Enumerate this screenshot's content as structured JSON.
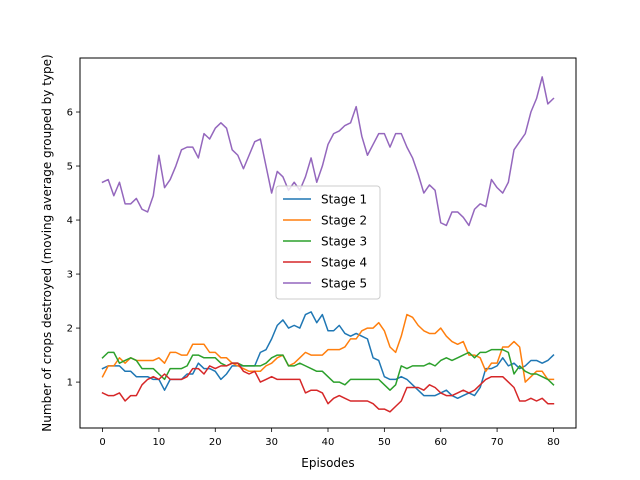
{
  "chart_data": {
    "type": "line",
    "title": "",
    "xlabel": "Episodes",
    "ylabel": "Number of crops destroyed (moving average grouped by type)",
    "xlim": [
      -4,
      84
    ],
    "ylim": [
      0.15,
      7.0
    ],
    "xticks": [
      0,
      10,
      20,
      30,
      40,
      50,
      60,
      70,
      80
    ],
    "yticks": [
      1,
      2,
      3,
      4,
      5,
      6
    ],
    "x_start": 0,
    "grid": false,
    "legend_position": "center",
    "series": [
      {
        "name": "Stage 1",
        "color": "#1f77b4",
        "values": [
          1.25,
          1.3,
          1.3,
          1.3,
          1.2,
          1.2,
          1.1,
          1.1,
          1.1,
          1.05,
          1.05,
          0.85,
          1.05,
          1.05,
          1.05,
          1.15,
          1.15,
          1.35,
          1.25,
          1.25,
          1.2,
          1.05,
          1.15,
          1.3,
          1.3,
          1.3,
          1.3,
          1.3,
          1.55,
          1.6,
          1.8,
          2.05,
          2.15,
          2.0,
          2.05,
          2.0,
          2.25,
          2.3,
          2.1,
          2.25,
          1.95,
          1.95,
          2.05,
          1.9,
          1.85,
          1.9,
          1.85,
          1.8,
          1.45,
          1.4,
          1.1,
          1.05,
          1.05,
          1.1,
          1.05,
          0.95,
          0.85,
          0.75,
          0.75,
          0.75,
          0.8,
          0.85,
          0.75,
          0.7,
          0.75,
          0.8,
          0.75,
          0.9,
          1.25,
          1.25,
          1.3,
          1.45,
          1.3,
          1.35,
          1.25,
          1.3,
          1.4,
          1.4,
          1.35,
          1.4,
          1.5
        ]
      },
      {
        "name": "Stage 2",
        "color": "#ff7f0e",
        "values": [
          1.1,
          1.3,
          1.3,
          1.45,
          1.35,
          1.45,
          1.4,
          1.4,
          1.4,
          1.4,
          1.45,
          1.35,
          1.55,
          1.55,
          1.5,
          1.5,
          1.7,
          1.7,
          1.7,
          1.55,
          1.55,
          1.45,
          1.45,
          1.35,
          1.3,
          1.25,
          1.2,
          1.2,
          1.2,
          1.3,
          1.35,
          1.45,
          1.5,
          1.3,
          1.35,
          1.45,
          1.55,
          1.5,
          1.5,
          1.5,
          1.6,
          1.6,
          1.6,
          1.65,
          1.8,
          1.8,
          1.95,
          2.0,
          2.0,
          2.1,
          1.95,
          1.65,
          1.55,
          1.85,
          2.25,
          2.2,
          2.05,
          1.95,
          1.9,
          1.9,
          2.0,
          1.85,
          1.75,
          1.7,
          1.75,
          1.5,
          1.5,
          1.45,
          1.2,
          1.35,
          1.35,
          1.65,
          1.65,
          1.75,
          1.65,
          1.0,
          1.1,
          1.2,
          1.2,
          1.05,
          1.05
        ]
      },
      {
        "name": "Stage 3",
        "color": "#2ca02c",
        "values": [
          1.45,
          1.55,
          1.55,
          1.35,
          1.4,
          1.45,
          1.4,
          1.25,
          1.25,
          1.25,
          1.15,
          1.05,
          1.25,
          1.25,
          1.25,
          1.3,
          1.5,
          1.5,
          1.45,
          1.45,
          1.45,
          1.35,
          1.3,
          1.35,
          1.35,
          1.3,
          1.3,
          1.3,
          1.3,
          1.35,
          1.45,
          1.5,
          1.5,
          1.3,
          1.3,
          1.35,
          1.3,
          1.25,
          1.2,
          1.2,
          1.1,
          1.0,
          1.0,
          0.95,
          1.05,
          1.05,
          1.05,
          1.05,
          1.05,
          1.05,
          0.95,
          0.85,
          0.95,
          1.3,
          1.25,
          1.3,
          1.3,
          1.3,
          1.35,
          1.3,
          1.4,
          1.45,
          1.4,
          1.45,
          1.5,
          1.55,
          1.45,
          1.55,
          1.55,
          1.6,
          1.6,
          1.6,
          1.55,
          1.15,
          1.3,
          1.2,
          1.15,
          1.15,
          1.1,
          1.05,
          0.95
        ]
      },
      {
        "name": "Stage 4",
        "color": "#d62728",
        "values": [
          0.8,
          0.75,
          0.75,
          0.8,
          0.65,
          0.75,
          0.75,
          0.95,
          1.05,
          1.1,
          1.05,
          1.15,
          1.05,
          1.05,
          1.05,
          1.1,
          1.25,
          1.25,
          1.15,
          1.3,
          1.25,
          1.3,
          1.3,
          1.35,
          1.35,
          1.2,
          1.15,
          1.2,
          1.0,
          1.05,
          1.1,
          1.05,
          1.05,
          1.05,
          1.05,
          1.05,
          0.8,
          0.85,
          0.85,
          0.8,
          0.6,
          0.7,
          0.75,
          0.7,
          0.65,
          0.65,
          0.65,
          0.65,
          0.6,
          0.5,
          0.5,
          0.45,
          0.55,
          0.65,
          0.9,
          0.9,
          0.9,
          0.85,
          0.95,
          0.9,
          0.8,
          0.75,
          0.75,
          0.8,
          0.85,
          0.8,
          0.85,
          0.95,
          1.05,
          1.1,
          1.1,
          1.1,
          1.0,
          0.9,
          0.65,
          0.65,
          0.7,
          0.65,
          0.7,
          0.6,
          0.6
        ]
      },
      {
        "name": "Stage 5",
        "color": "#9467bd",
        "values": [
          4.7,
          4.75,
          4.45,
          4.7,
          4.3,
          4.3,
          4.4,
          4.2,
          4.15,
          4.45,
          5.2,
          4.6,
          4.75,
          5.0,
          5.3,
          5.35,
          5.35,
          5.15,
          5.6,
          5.5,
          5.7,
          5.8,
          5.7,
          5.3,
          5.2,
          4.95,
          5.2,
          5.45,
          5.5,
          5.0,
          4.5,
          4.9,
          4.8,
          4.55,
          4.7,
          4.55,
          4.8,
          5.15,
          4.7,
          5.0,
          5.4,
          5.6,
          5.65,
          5.75,
          5.8,
          6.1,
          5.55,
          5.2,
          5.4,
          5.6,
          5.6,
          5.35,
          5.6,
          5.6,
          5.35,
          5.15,
          4.85,
          4.5,
          4.65,
          4.55,
          3.95,
          3.9,
          4.15,
          4.15,
          4.05,
          3.9,
          4.2,
          4.3,
          4.25,
          4.75,
          4.6,
          4.5,
          4.7,
          5.3,
          5.45,
          5.6,
          6.0,
          6.25,
          6.65,
          6.15,
          6.25
        ]
      }
    ]
  }
}
